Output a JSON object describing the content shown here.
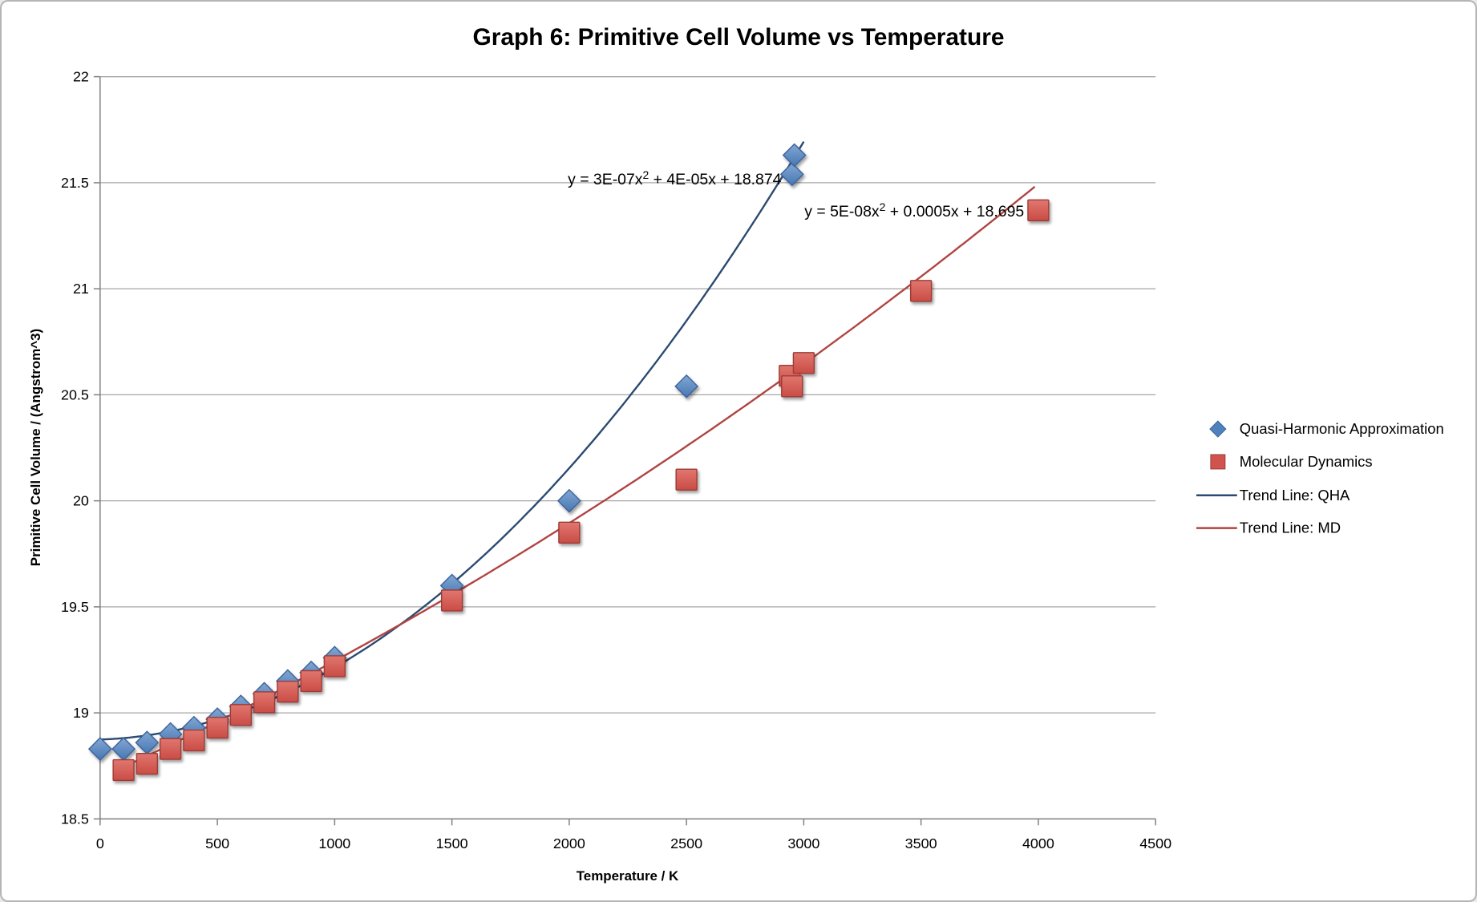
{
  "window": {
    "background": "#ffffff",
    "border_color": "#b5b5b5",
    "gridline_color": "#a6a6a6",
    "axis_color": "#808080"
  },
  "chart_data": {
    "type": "scatter",
    "title": "Graph 6: Primitive Cell Volume vs Temperature",
    "xlabel": "Temperature / K",
    "ylabel": "Primitive Cell Volume / (Angstrom^3)",
    "xlim": [
      0,
      4500
    ],
    "ylim": [
      18.5,
      22
    ],
    "x_ticks": [
      0,
      500,
      1000,
      1500,
      2000,
      2500,
      3000,
      3500,
      4000,
      4500
    ],
    "y_ticks": [
      18.5,
      19,
      19.5,
      20,
      20.5,
      21,
      21.5,
      22
    ],
    "grid": "horizontal-only",
    "legend_position": "right",
    "series": [
      {
        "name": "Quasi-Harmonic Approximation",
        "marker": "diamond",
        "color": "#4f81bd",
        "border_color": "#3a649c",
        "points": [
          [
            0,
            18.83
          ],
          [
            100,
            18.83
          ],
          [
            200,
            18.86
          ],
          [
            300,
            18.9
          ],
          [
            400,
            18.93
          ],
          [
            500,
            18.97
          ],
          [
            600,
            19.03
          ],
          [
            700,
            19.09
          ],
          [
            800,
            19.15
          ],
          [
            900,
            19.19
          ],
          [
            1000,
            19.26
          ],
          [
            1500,
            19.6
          ],
          [
            2000,
            20.0
          ],
          [
            2500,
            20.54
          ],
          [
            2950,
            21.54
          ],
          [
            2960,
            21.63
          ]
        ]
      },
      {
        "name": "Molecular Dynamics",
        "marker": "square",
        "color": "#d0544d",
        "border_color": "#9e3a36",
        "points": [
          [
            100,
            18.73
          ],
          [
            200,
            18.76
          ],
          [
            300,
            18.83
          ],
          [
            400,
            18.87
          ],
          [
            500,
            18.93
          ],
          [
            600,
            18.99
          ],
          [
            700,
            19.05
          ],
          [
            800,
            19.1
          ],
          [
            900,
            19.15
          ],
          [
            1000,
            19.22
          ],
          [
            1500,
            19.53
          ],
          [
            2000,
            19.85
          ],
          [
            2500,
            20.1
          ],
          [
            2940,
            20.59
          ],
          [
            2950,
            20.54
          ],
          [
            3000,
            20.65
          ],
          [
            3500,
            20.99
          ],
          [
            4000,
            21.37
          ]
        ]
      }
    ],
    "trendlines": [
      {
        "name": "Trend Line: QHA",
        "color": "#2b4a70",
        "a": 3e-07,
        "b": 4e-05,
        "c": 18.874,
        "x_start": 0,
        "x_end": 3010,
        "eq_prefix": "y = 3E-07x",
        "eq_sup": "2",
        "eq_suffix": " + 4E-05x + 18.874",
        "label_anchor_x": 2450,
        "label_anchor_y": 21.49
      },
      {
        "name": "Trend Line: MD",
        "color": "#b04442",
        "a": 5e-08,
        "b": 0.0005,
        "c": 18.695,
        "x_start": 60,
        "x_end": 4000,
        "eq_prefix": "y = 5E-08x",
        "eq_sup": "2",
        "eq_suffix": " + 0.0005x + 18.695",
        "label_anchor_x": 3470,
        "label_anchor_y": 21.36
      }
    ],
    "legend": {
      "items": [
        {
          "label": "Quasi-Harmonic Approximation",
          "symbol": "blue-diamond"
        },
        {
          "label": "Molecular Dynamics",
          "symbol": "red-square"
        },
        {
          "label": "Trend Line: QHA",
          "symbol": "navy-line"
        },
        {
          "label": "Trend Line: MD",
          "symbol": "red-line"
        }
      ]
    }
  }
}
